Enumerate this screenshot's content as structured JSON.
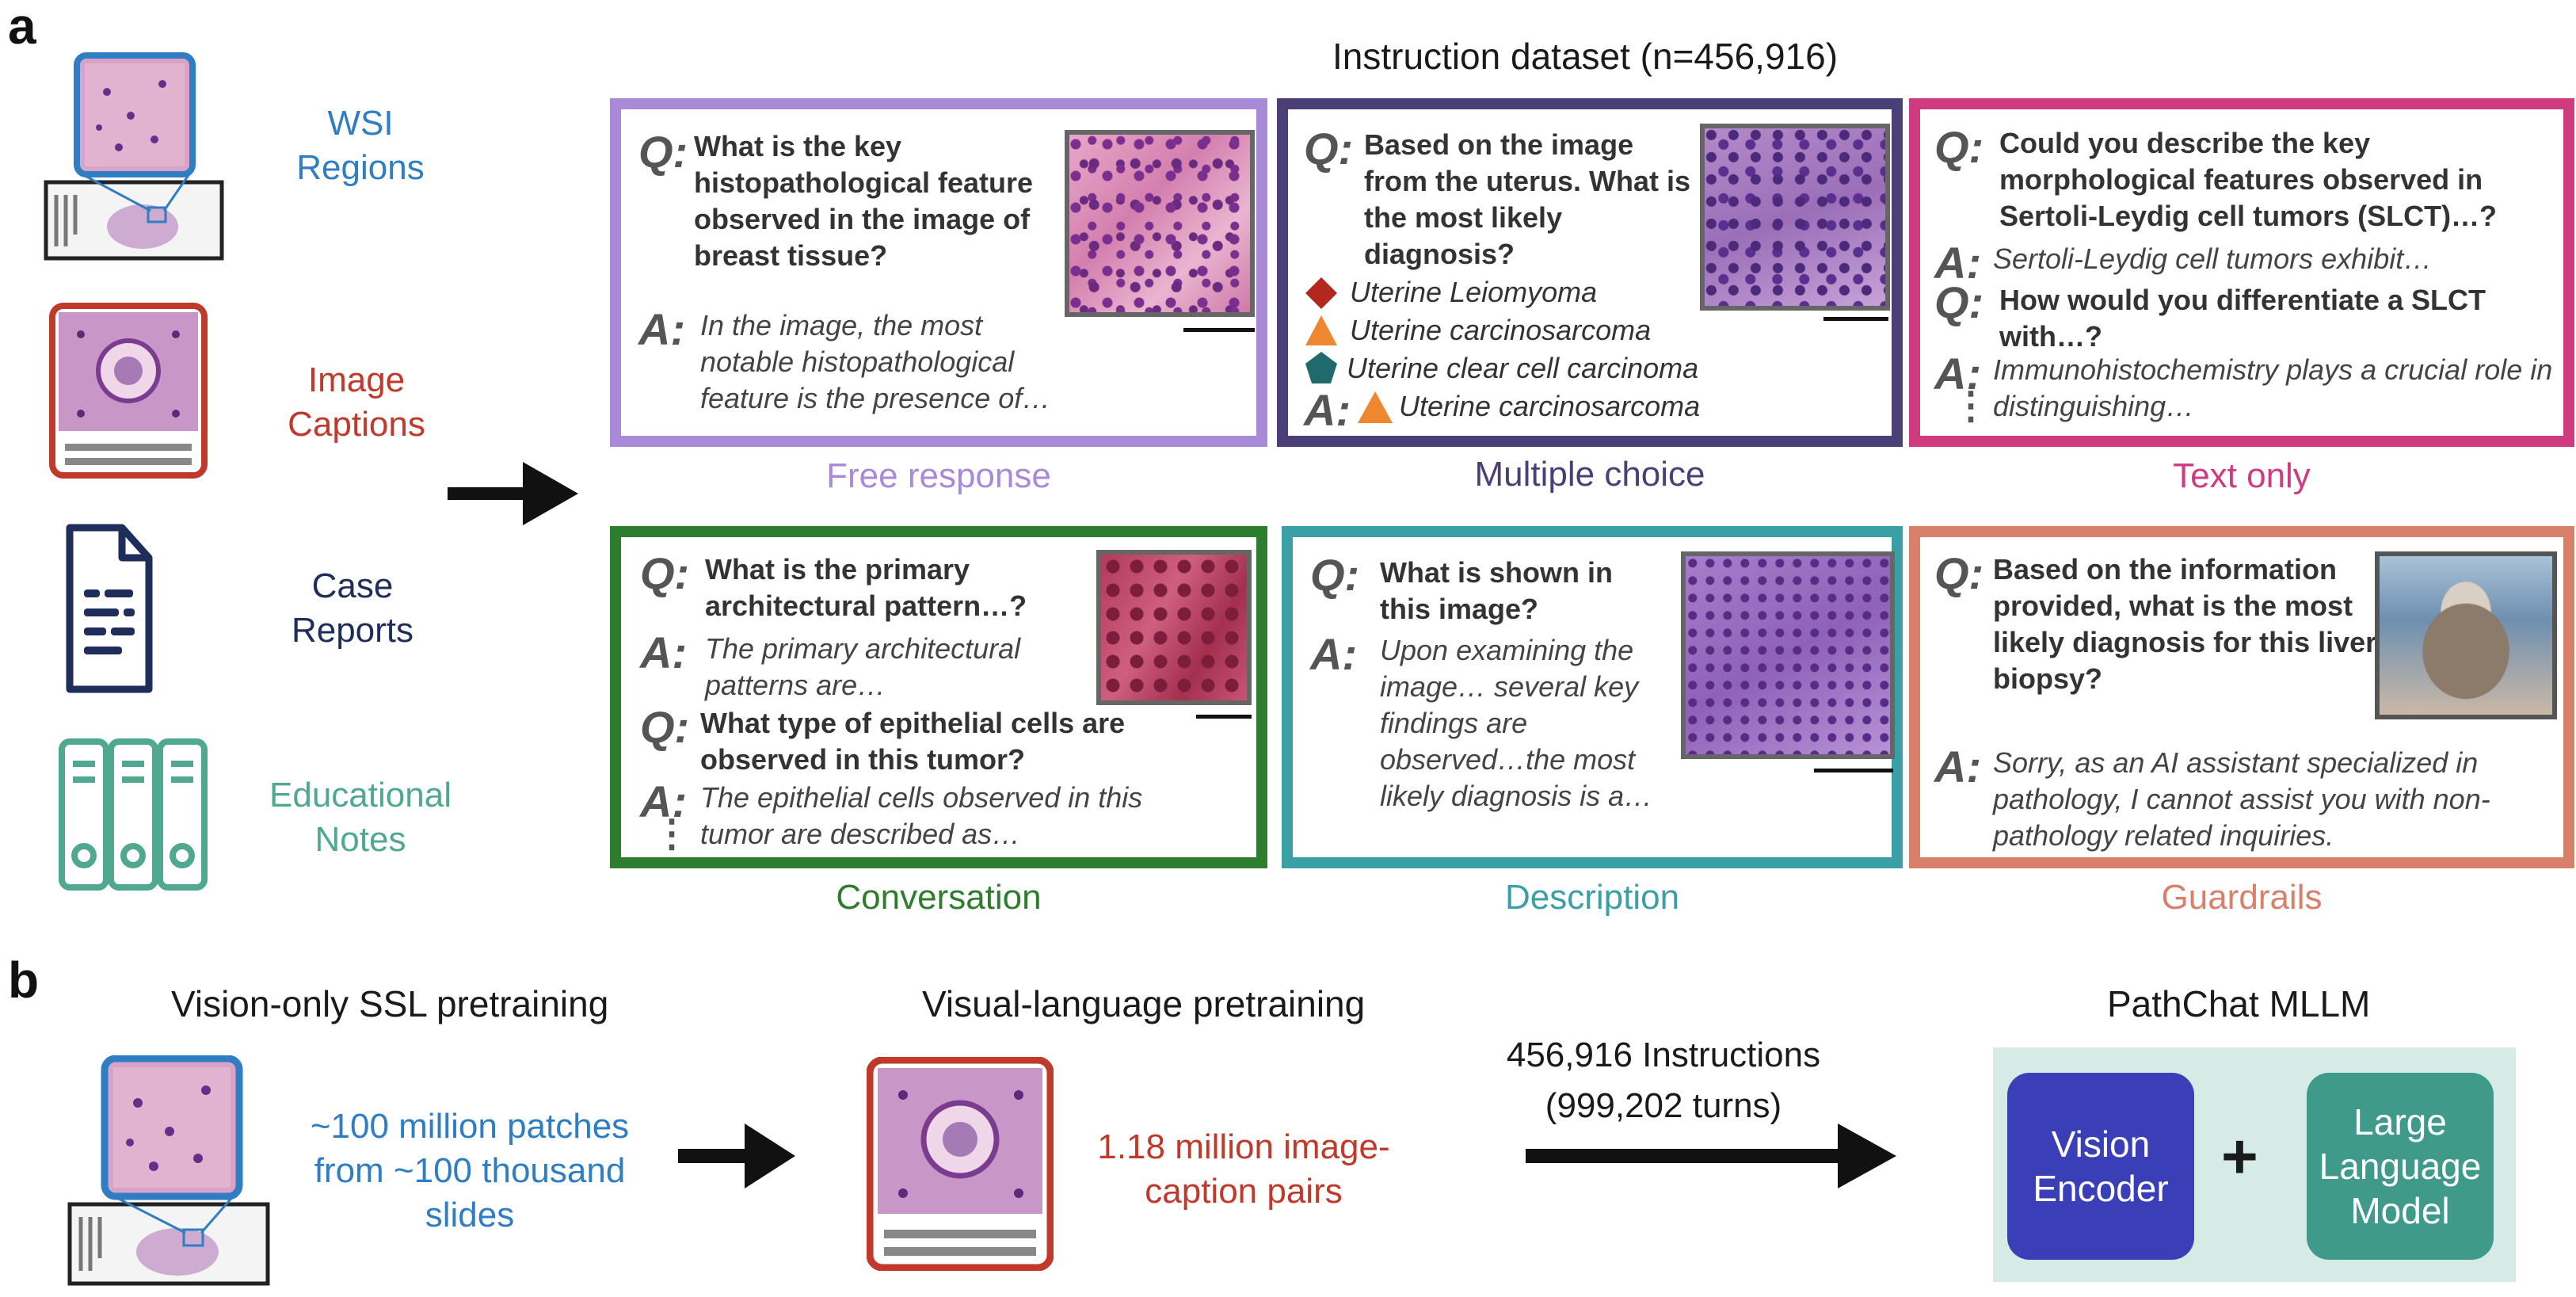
{
  "panel_a": {
    "letter": "a",
    "title": "Instruction dataset (n=456,916)",
    "sources": [
      {
        "label_line1": "WSI",
        "label_line2": "Regions",
        "color": "#2f7dc2"
      },
      {
        "label_line1": "Image",
        "label_line2": "Captions",
        "color": "#c0392b"
      },
      {
        "label_line1": "Case",
        "label_line2": "Reports",
        "color": "#1f2d5a"
      },
      {
        "label_line1": "Educational",
        "label_line2": "Notes",
        "color": "#4fa88f"
      }
    ],
    "cards": {
      "free_response": {
        "caption": "Free response",
        "color": "#a98ad8",
        "q_tag": "Q:",
        "a_tag": "A:",
        "question": "What is the key histopathological feature observed in the image of breast tissue?",
        "answer": "In the image, the most notable histopathological feature is the presence of…"
      },
      "multiple_choice": {
        "caption": "Multiple choice",
        "color": "#4b3f78",
        "q_tag": "Q:",
        "a_tag": "A:",
        "question": "Based on the image from the uterus. What is the most likely diagnosis?",
        "options": [
          "Uterine Leiomyoma",
          "Uterine carcinosarcoma",
          "Uterine clear cell carcinoma"
        ],
        "answer": "Uterine carcinosarcoma"
      },
      "text_only": {
        "caption": "Text only",
        "color": "#d03a7f",
        "q_tag": "Q:",
        "a_tag": "A:",
        "q1": "Could you describe the key morphological features observed in Sertoli-Leydig cell tumors (SLCT)…?",
        "a1": "Sertoli-Leydig cell tumors exhibit…",
        "q2": "How would you differentiate a SLCT with…?",
        "a2": "Immunohistochemistry plays a crucial role in distinguishing…",
        "ellipsis": "⋮"
      },
      "conversation": {
        "caption": "Conversation",
        "color": "#2e7d2e",
        "q_tag": "Q:",
        "a_tag": "A:",
        "q1": "What is the primary architectural pattern…?",
        "a1": "The primary architectural patterns are…",
        "q2": "What type of epithelial cells are observed in this tumor?",
        "a2": "The epithelial cells observed in this tumor are described as…",
        "ellipsis": "⋮"
      },
      "description": {
        "caption": "Description",
        "color": "#3aa0a6",
        "q_tag": "Q:",
        "a_tag": "A:",
        "question": "What is shown in this image?",
        "answer": "Upon examining the image… several key findings are observed…the most likely diagnosis is a…"
      },
      "guardrails": {
        "caption": "Guardrails",
        "color": "#d9806b",
        "q_tag": "Q:",
        "a_tag": "A:",
        "question": "Based on the information provided, what is the most likely diagnosis for this liver biopsy?",
        "answer": "Sorry, as an AI assistant specialized in pathology, I cannot assist you with non-pathology related inquiries."
      }
    }
  },
  "panel_b": {
    "letter": "b",
    "stage1_title": "Vision-only SSL pretraining",
    "stage1_text": "~100 million patches from ~100 thousand slides",
    "stage2_title": "Visual-language pretraining",
    "stage2_text": "1.18 million image-caption pairs",
    "stage3_line1": "456,916 Instructions",
    "stage3_line2": "(999,202 turns)",
    "model_title": "PathChat MLLM",
    "vision_encoder": "Vision Encoder",
    "plus": "+",
    "llm": "Large Language Model",
    "colors": {
      "blue_text": "#2f7dc2",
      "red_text": "#c0392b",
      "encoder": "#3a3fb8",
      "llm": "#3f9a8a",
      "model_bg": "#d6ebe6"
    }
  }
}
